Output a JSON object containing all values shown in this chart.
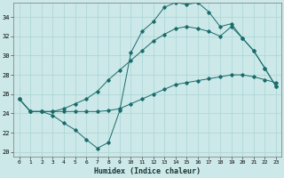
{
  "xlabel": "Humidex (Indice chaleur)",
  "bg_color": "#cce8e8",
  "line_color": "#1a6b6b",
  "grid_color": "#aad4d4",
  "xlim": [
    -0.5,
    23.5
  ],
  "ylim": [
    19.5,
    35.5
  ],
  "xticks": [
    0,
    1,
    2,
    3,
    4,
    5,
    6,
    7,
    8,
    9,
    10,
    11,
    12,
    13,
    14,
    15,
    16,
    17,
    18,
    19,
    20,
    21,
    22,
    23
  ],
  "yticks": [
    20,
    22,
    24,
    26,
    28,
    30,
    32,
    34
  ],
  "line1_x": [
    0,
    1,
    2,
    3,
    4,
    5,
    6,
    7,
    8,
    9,
    10,
    11,
    12,
    13,
    14,
    15,
    16,
    17,
    18,
    19,
    20,
    21,
    22,
    23
  ],
  "line1_y": [
    25.5,
    24.2,
    24.2,
    24.2,
    24.2,
    24.2,
    24.2,
    24.2,
    24.3,
    24.5,
    25.0,
    25.5,
    26.0,
    26.5,
    27.0,
    27.2,
    27.4,
    27.6,
    27.8,
    28.0,
    28.0,
    27.8,
    27.5,
    27.2
  ],
  "line2_x": [
    0,
    1,
    2,
    3,
    4,
    5,
    6,
    7,
    8,
    9,
    10,
    11,
    12,
    13,
    14,
    15,
    16,
    17,
    18,
    19,
    20,
    21,
    22,
    23
  ],
  "line2_y": [
    25.5,
    24.2,
    24.2,
    23.8,
    23.0,
    22.3,
    21.3,
    20.4,
    21.0,
    24.3,
    30.3,
    32.5,
    33.5,
    35.0,
    35.5,
    35.3,
    35.5,
    34.5,
    33.0,
    33.3,
    31.8,
    30.5,
    28.7,
    26.8
  ],
  "line3_x": [
    0,
    1,
    2,
    3,
    4,
    5,
    6,
    7,
    8,
    9,
    10,
    11,
    12,
    13,
    14,
    15,
    16,
    17,
    18,
    19,
    20,
    21,
    22,
    23
  ],
  "line3_y": [
    25.5,
    24.2,
    24.2,
    24.2,
    24.5,
    25.0,
    25.5,
    26.3,
    27.5,
    28.5,
    29.5,
    30.5,
    31.5,
    32.2,
    32.8,
    33.0,
    32.8,
    32.5,
    32.0,
    33.0,
    31.8,
    30.5,
    28.7,
    26.8
  ]
}
